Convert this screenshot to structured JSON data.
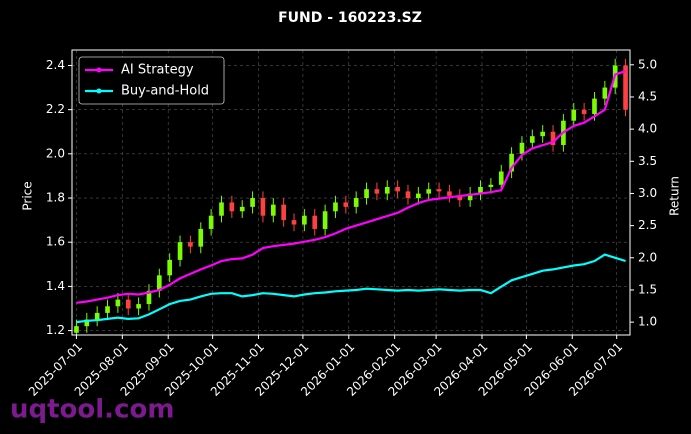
{
  "chart_data": {
    "type": "candlestick",
    "title": "FUND - 160223.SZ",
    "y_label": "Price",
    "y2_label": "Return",
    "watermark": "uqtool.com",
    "grid": true,
    "legend_position": "upper-left",
    "up_color": "#7cfc00",
    "down_color": "#ff4040",
    "x": [
      "2025-07-01",
      "2025-07-08",
      "2025-07-15",
      "2025-07-22",
      "2025-07-29",
      "2025-08-05",
      "2025-08-12",
      "2025-08-19",
      "2025-08-26",
      "2025-09-02",
      "2025-09-09",
      "2025-09-16",
      "2025-09-23",
      "2025-09-30",
      "2025-10-07",
      "2025-10-14",
      "2025-10-21",
      "2025-10-28",
      "2025-11-04",
      "2025-11-11",
      "2025-11-18",
      "2025-11-25",
      "2025-12-02",
      "2025-12-09",
      "2025-12-16",
      "2025-12-23",
      "2025-12-30",
      "2026-01-06",
      "2026-01-13",
      "2026-01-20",
      "2026-01-27",
      "2026-02-03",
      "2026-02-10",
      "2026-02-17",
      "2026-02-24",
      "2026-03-03",
      "2026-03-10",
      "2026-03-17",
      "2026-03-24",
      "2026-03-31",
      "2026-04-07",
      "2026-04-14",
      "2026-04-21",
      "2026-04-28",
      "2026-05-05",
      "2026-05-12",
      "2026-05-19",
      "2026-05-26",
      "2026-06-02",
      "2026-06-09",
      "2026-06-16",
      "2026-06-23",
      "2026-06-30",
      "2026-07-07"
    ],
    "xlim": [
      "2025-06-28",
      "2026-07-10"
    ],
    "xticks": [
      "2025-07-01",
      "2025-08-01",
      "2025-09-01",
      "2025-10-01",
      "2025-11-01",
      "2025-12-01",
      "2026-01-01",
      "2026-02-01",
      "2026-03-01",
      "2026-04-01",
      "2026-05-01",
      "2026-06-01",
      "2026-07-01"
    ],
    "ylim": [
      1.18,
      2.47
    ],
    "yticks": [
      1.2,
      1.4,
      1.6,
      1.8,
      {
        "value": 2,
        "label": "2.0"
      },
      2.2,
      2.4
    ],
    "y2lim": [
      0.8,
      5.23
    ],
    "y2ticks": [
      {
        "value": 1,
        "label": "1.0"
      },
      1.5,
      {
        "value": 2,
        "label": "2.0"
      },
      2.5,
      {
        "value": 3,
        "label": "3.0"
      },
      3.5,
      {
        "value": 4,
        "label": "4.0"
      },
      4.5,
      {
        "value": 5,
        "label": "5.0"
      }
    ],
    "open": [
      1.19,
      1.22,
      1.25,
      1.28,
      1.31,
      1.34,
      1.3,
      1.32,
      1.38,
      1.45,
      1.52,
      1.6,
      1.58,
      1.66,
      1.72,
      1.78,
      1.74,
      1.76,
      1.8,
      1.72,
      1.77,
      1.7,
      1.68,
      1.72,
      1.66,
      1.74,
      1.78,
      1.76,
      1.8,
      1.84,
      1.82,
      1.85,
      1.83,
      1.8,
      1.82,
      1.84,
      1.83,
      1.81,
      1.79,
      1.82,
      1.85,
      1.86,
      1.92,
      2.0,
      2.05,
      2.08,
      2.1,
      2.04,
      2.15,
      2.2,
      2.18,
      2.25,
      2.3,
      2.4
    ],
    "high": [
      1.25,
      1.28,
      1.31,
      1.34,
      1.37,
      1.37,
      1.35,
      1.41,
      1.48,
      1.55,
      1.63,
      1.63,
      1.69,
      1.75,
      1.81,
      1.81,
      1.79,
      1.83,
      1.83,
      1.8,
      1.8,
      1.73,
      1.75,
      1.75,
      1.77,
      1.81,
      1.81,
      1.83,
      1.87,
      1.87,
      1.88,
      1.88,
      1.86,
      1.85,
      1.87,
      1.87,
      1.86,
      1.84,
      1.85,
      1.88,
      1.89,
      1.95,
      2.03,
      2.08,
      2.11,
      2.13,
      2.13,
      2.18,
      2.23,
      2.23,
      2.28,
      2.33,
      2.43,
      2.43
    ],
    "low": [
      1.18,
      1.19,
      1.22,
      1.25,
      1.28,
      1.27,
      1.27,
      1.29,
      1.35,
      1.42,
      1.49,
      1.55,
      1.55,
      1.63,
      1.69,
      1.71,
      1.71,
      1.73,
      1.69,
      1.69,
      1.67,
      1.65,
      1.65,
      1.63,
      1.63,
      1.71,
      1.73,
      1.73,
      1.77,
      1.79,
      1.79,
      1.8,
      1.77,
      1.77,
      1.79,
      1.8,
      1.78,
      1.76,
      1.76,
      1.79,
      1.82,
      1.83,
      1.89,
      1.97,
      2.02,
      2.05,
      2.01,
      2.01,
      2.12,
      2.15,
      2.15,
      2.22,
      2.27,
      2.17
    ],
    "close": [
      1.22,
      1.25,
      1.28,
      1.31,
      1.34,
      1.3,
      1.32,
      1.38,
      1.45,
      1.52,
      1.6,
      1.58,
      1.66,
      1.72,
      1.78,
      1.74,
      1.76,
      1.8,
      1.72,
      1.77,
      1.7,
      1.68,
      1.72,
      1.66,
      1.74,
      1.78,
      1.76,
      1.8,
      1.84,
      1.82,
      1.85,
      1.83,
      1.8,
      1.82,
      1.84,
      1.83,
      1.81,
      1.79,
      1.82,
      1.85,
      1.86,
      1.92,
      2.0,
      2.05,
      2.08,
      2.1,
      2.04,
      2.15,
      2.2,
      2.18,
      2.25,
      2.3,
      2.4,
      2.2
    ],
    "series": [
      {
        "name": "AI Strategy",
        "color": "#ff00ff",
        "axis": "y2",
        "values": [
          1.3,
          1.32,
          1.35,
          1.38,
          1.42,
          1.44,
          1.43,
          1.46,
          1.5,
          1.58,
          1.68,
          1.75,
          1.82,
          1.88,
          1.95,
          1.98,
          1.99,
          2.05,
          2.15,
          2.18,
          2.2,
          2.22,
          2.25,
          2.28,
          2.32,
          2.38,
          2.45,
          2.5,
          2.55,
          2.6,
          2.65,
          2.7,
          2.78,
          2.85,
          2.9,
          2.92,
          2.94,
          2.96,
          2.98,
          3.0,
          3.02,
          3.05,
          3.4,
          3.6,
          3.7,
          3.75,
          3.8,
          3.95,
          4.05,
          4.1,
          4.2,
          4.3,
          4.85,
          4.9
        ]
      },
      {
        "name": "Buy-and-Hold",
        "color": "#00ffff",
        "axis": "y2",
        "values": [
          1.0,
          1.02,
          1.03,
          1.05,
          1.07,
          1.05,
          1.06,
          1.12,
          1.2,
          1.28,
          1.33,
          1.35,
          1.4,
          1.44,
          1.45,
          1.45,
          1.4,
          1.42,
          1.45,
          1.44,
          1.42,
          1.4,
          1.43,
          1.45,
          1.46,
          1.48,
          1.49,
          1.5,
          1.52,
          1.51,
          1.5,
          1.49,
          1.5,
          1.49,
          1.5,
          1.51,
          1.5,
          1.49,
          1.5,
          1.5,
          1.45,
          1.55,
          1.65,
          1.7,
          1.75,
          1.8,
          1.82,
          1.85,
          1.88,
          1.9,
          1.95,
          2.05,
          2.0,
          1.95
        ]
      }
    ]
  }
}
